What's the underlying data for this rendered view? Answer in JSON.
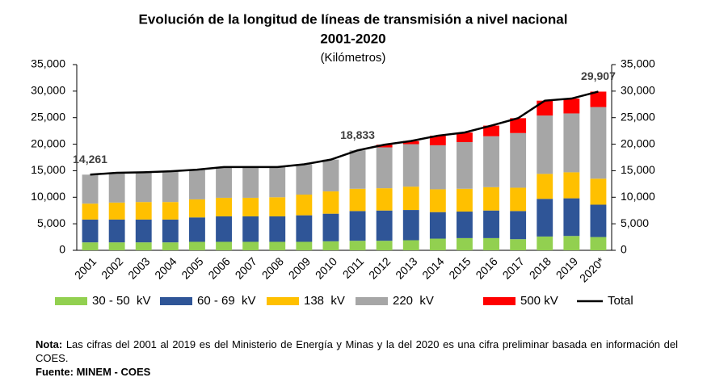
{
  "chart_data": {
    "type": "stacked_bar_line",
    "title": "Evolución de la longitud de líneas de transmisión a nivel nacional",
    "title_period": "2001-2020",
    "subtitle": "(Kilómetros)",
    "categories": [
      "2001",
      "2002",
      "2003",
      "2004",
      "2005",
      "2006",
      "2007",
      "2008",
      "2009",
      "2010",
      "2011",
      "2012",
      "2013",
      "2014",
      "2015",
      "2016",
      "2017",
      "2018",
      "2019",
      "2020*"
    ],
    "series": [
      {
        "name": "30 - 50  kV",
        "color": "#92d050",
        "type": "bar",
        "values": [
          1500,
          1500,
          1500,
          1500,
          1600,
          1600,
          1600,
          1600,
          1600,
          1700,
          1800,
          1800,
          1900,
          2200,
          2300,
          2300,
          2100,
          2600,
          2700,
          2500
        ]
      },
      {
        "name": "60 - 69  kV",
        "color": "#2f5597",
        "type": "bar",
        "values": [
          4300,
          4300,
          4300,
          4300,
          4600,
          4800,
          4800,
          4800,
          5000,
          5200,
          5600,
          5700,
          5700,
          5000,
          5000,
          5200,
          5300,
          7100,
          7100,
          6100
        ]
      },
      {
        "name": "138  kV",
        "color": "#ffc000",
        "type": "bar",
        "values": [
          3000,
          3200,
          3300,
          3300,
          3400,
          3500,
          3500,
          3600,
          3900,
          4200,
          4200,
          4200,
          4400,
          4300,
          4300,
          4400,
          4400,
          4700,
          4900,
          4900
        ]
      },
      {
        "name": "220  kV",
        "color": "#a6a6a6",
        "type": "bar",
        "values": [
          5461,
          5600,
          5600,
          5800,
          5600,
          5800,
          5800,
          5700,
          5700,
          6000,
          7233,
          7700,
          8000,
          8300,
          8800,
          9600,
          10300,
          11000,
          11100,
          13500
        ]
      },
      {
        "name": "500 kV",
        "color": "#ff0000",
        "type": "bar",
        "values": [
          0,
          0,
          0,
          0,
          0,
          0,
          0,
          0,
          0,
          0,
          0,
          500,
          600,
          1800,
          1800,
          2000,
          2800,
          2800,
          2800,
          2907
        ]
      },
      {
        "name": "Total",
        "color": "#000000",
        "type": "line",
        "values": [
          14261,
          14600,
          14700,
          14900,
          15200,
          15700,
          15700,
          15700,
          16200,
          17100,
          18833,
          19900,
          20600,
          21600,
          22200,
          23500,
          24900,
          28200,
          28600,
          29907
        ],
        "value_labels": [
          "14,261",
          null,
          null,
          null,
          null,
          null,
          null,
          null,
          null,
          null,
          "18,833",
          null,
          null,
          null,
          null,
          null,
          null,
          null,
          null,
          "29,907"
        ]
      }
    ],
    "ylim": [
      0,
      35000
    ],
    "yticks": [
      0,
      {
        "value": 5000,
        "label": "5,000"
      },
      {
        "value": 10000,
        "label": "10,000"
      },
      {
        "value": 15000,
        "label": "15,000"
      },
      {
        "value": 20000,
        "label": "20,000"
      },
      {
        "value": 25000,
        "label": "25,000"
      },
      {
        "value": 30000,
        "label": "30,000"
      },
      {
        "value": 35000,
        "label": "35,000"
      }
    ],
    "y2lim": [
      0,
      35000
    ],
    "y2ticks": [
      0,
      {
        "value": 5000,
        "label": "5,000"
      },
      {
        "value": 10000,
        "label": "10,000"
      },
      {
        "value": 15000,
        "label": "15,000"
      },
      {
        "value": 20000,
        "label": "20,000"
      },
      {
        "value": 25000,
        "label": "25,000"
      },
      {
        "value": 30000,
        "label": "30,000"
      },
      {
        "value": 35000,
        "label": "35,000"
      }
    ],
    "legend": "bottom"
  },
  "notes": {
    "nota_label": "Nota:",
    "nota_text": "Las cifras del 2001 al 2019 es del Ministerio de Energía y Minas y la del 2020 es una cifra preliminar basada en información del COES.",
    "fuente_label": "Fuente:",
    "fuente_text": "MINEM - COES"
  }
}
